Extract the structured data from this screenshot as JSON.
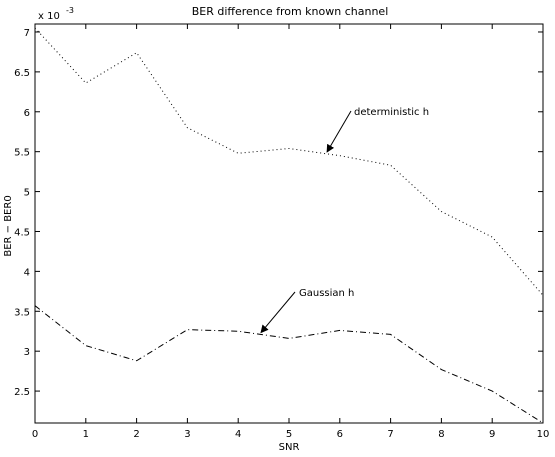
{
  "chart_data": {
    "type": "line",
    "title": "BER difference from known channel",
    "xlabel": "SNR",
    "ylabel": "BER − BER0",
    "y_scale_note": {
      "base": "x 10",
      "exponent": "-3"
    },
    "xlim": [
      0,
      10
    ],
    "ylim": [
      2.1,
      7.1
    ],
    "x_ticks": [
      0,
      1,
      2,
      3,
      4,
      5,
      6,
      7,
      8,
      9,
      10
    ],
    "y_ticks": [
      2.5,
      3,
      3.5,
      4,
      4.5,
      5,
      5.5,
      6,
      6.5,
      7
    ],
    "grid": false,
    "x": [
      0,
      1,
      2,
      3,
      4,
      5,
      6,
      7,
      8,
      9,
      10
    ],
    "series": [
      {
        "name": "deterministic h",
        "line_style": "dotted",
        "values": [
          7.05,
          6.36,
          6.74,
          5.8,
          5.48,
          5.54,
          5.45,
          5.33,
          4.75,
          4.43,
          3.7
        ]
      },
      {
        "name": "Gaussian h",
        "line_style": "dashdot",
        "values": [
          3.57,
          3.07,
          2.88,
          3.27,
          3.25,
          3.16,
          3.26,
          3.21,
          2.77,
          2.5,
          2.1
        ]
      }
    ],
    "annotations": [
      {
        "text": "deterministic h",
        "series": 0,
        "arrow_to_x": 5.75
      },
      {
        "text": "Gaussian h",
        "series": 1,
        "arrow_to_x": 4.45
      }
    ]
  }
}
